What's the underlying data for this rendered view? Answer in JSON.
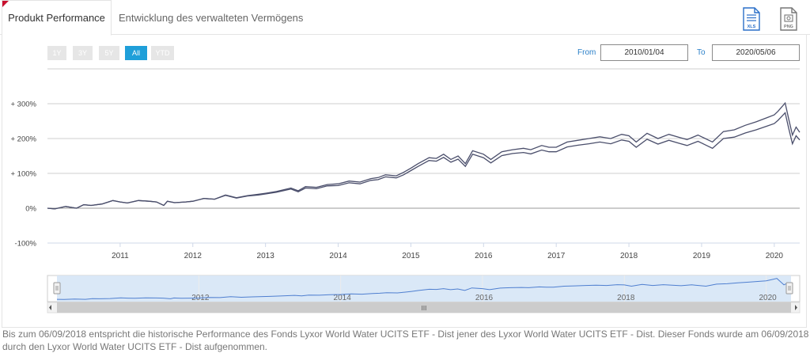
{
  "tabs": {
    "active": "Produkt Performance",
    "inactive": "Entwicklung des verwalteten Vermögens"
  },
  "exports": {
    "xls_label": "XLS",
    "png_label": "PNG"
  },
  "range_buttons": [
    "1Y",
    "3Y",
    "5Y",
    "All",
    "YTD"
  ],
  "range_selected": "All",
  "date_range": {
    "from_label": "From",
    "from_value": "2010/01/04",
    "to_label": "To",
    "to_value": "2020/05/06"
  },
  "colors": {
    "accent": "#1f9fd9",
    "tab_marker": "#c8102e",
    "series": "#4a4e6b",
    "navigator_fill": "#d6e6f6",
    "navigator_line": "#4f7fd0"
  },
  "chart_data": {
    "type": "line",
    "y_ticks": [
      "+ 300%",
      "+ 200%",
      "+ 100%",
      "0%",
      "-100%"
    ],
    "y_tick_values": [
      300,
      200,
      100,
      0,
      -100
    ],
    "ylim": [
      -100,
      300
    ],
    "x_ticks": [
      "2011",
      "2012",
      "2013",
      "2014",
      "2015",
      "2016",
      "2017",
      "2018",
      "2019",
      "2020"
    ],
    "x_tick_values": [
      2011,
      2012,
      2013,
      2014,
      2015,
      2016,
      2017,
      2018,
      2019,
      2020
    ],
    "xlim": [
      2010.0,
      2020.35
    ],
    "grid": true,
    "series": [
      {
        "x": [
          2010.0,
          2010.1,
          2010.25,
          2010.4,
          2010.5,
          2010.6,
          2010.75,
          2010.9,
          2011.0,
          2011.1,
          2011.25,
          2011.4,
          2011.5,
          2011.6,
          2011.65,
          2011.75,
          2011.9,
          2012.0,
          2012.15,
          2012.3,
          2012.45,
          2012.6,
          2012.75,
          2012.9,
          2013.0,
          2013.15,
          2013.35,
          2013.45,
          2013.55,
          2013.7,
          2013.85,
          2014.0,
          2014.15,
          2014.3,
          2014.45,
          2014.55,
          2014.65,
          2014.8,
          2014.9,
          2015.0,
          2015.1,
          2015.25,
          2015.35,
          2015.45,
          2015.55,
          2015.65,
          2015.75,
          2015.85,
          2016.0,
          2016.1,
          2016.25,
          2016.4,
          2016.55,
          2016.65,
          2016.8,
          2016.9,
          2017.0,
          2017.15,
          2017.3,
          2017.45,
          2017.6,
          2017.75,
          2017.9,
          2018.0,
          2018.1,
          2018.25,
          2018.4,
          2018.55,
          2018.7,
          2018.8,
          2018.95,
          2019.0,
          2019.15,
          2019.3,
          2019.45,
          2019.6,
          2019.75,
          2019.9,
          2020.0,
          2020.05,
          2020.1,
          2020.15,
          2020.2,
          2020.25,
          2020.3,
          2020.35
        ],
        "values": [
          0,
          -2,
          5,
          0,
          10,
          8,
          12,
          22,
          18,
          15,
          22,
          20,
          18,
          8,
          20,
          16,
          18,
          20,
          28,
          26,
          38,
          30,
          36,
          40,
          43,
          48,
          58,
          50,
          62,
          60,
          68,
          70,
          78,
          75,
          85,
          88,
          96,
          93,
          103,
          115,
          128,
          145,
          143,
          155,
          140,
          150,
          128,
          165,
          155,
          140,
          162,
          168,
          172,
          168,
          180,
          175,
          175,
          190,
          195,
          200,
          205,
          200,
          212,
          208,
          190,
          215,
          200,
          212,
          203,
          197,
          210,
          205,
          190,
          220,
          225,
          238,
          248,
          260,
          268,
          278,
          290,
          302,
          255,
          210,
          233,
          218
        ]
      },
      {
        "x": [
          2010.0,
          2010.1,
          2010.25,
          2010.4,
          2010.5,
          2010.6,
          2010.75,
          2010.9,
          2011.0,
          2011.1,
          2011.25,
          2011.4,
          2011.5,
          2011.6,
          2011.65,
          2011.75,
          2011.9,
          2012.0,
          2012.15,
          2012.3,
          2012.45,
          2012.6,
          2012.75,
          2012.9,
          2013.0,
          2013.15,
          2013.35,
          2013.45,
          2013.55,
          2013.7,
          2013.85,
          2014.0,
          2014.15,
          2014.3,
          2014.45,
          2014.55,
          2014.65,
          2014.8,
          2014.9,
          2015.0,
          2015.1,
          2015.25,
          2015.35,
          2015.45,
          2015.55,
          2015.65,
          2015.75,
          2015.85,
          2016.0,
          2016.1,
          2016.25,
          2016.4,
          2016.55,
          2016.65,
          2016.8,
          2016.9,
          2017.0,
          2017.15,
          2017.3,
          2017.45,
          2017.6,
          2017.75,
          2017.9,
          2018.0,
          2018.1,
          2018.25,
          2018.4,
          2018.55,
          2018.7,
          2018.8,
          2018.95,
          2019.0,
          2019.15,
          2019.3,
          2019.45,
          2019.6,
          2019.75,
          2019.9,
          2020.0,
          2020.05,
          2020.1,
          2020.15,
          2020.2,
          2020.25,
          2020.3,
          2020.35
        ],
        "values": [
          0,
          -2,
          5,
          0,
          10,
          8,
          12,
          22,
          18,
          15,
          22,
          20,
          18,
          8,
          20,
          16,
          18,
          20,
          28,
          26,
          37,
          29,
          35,
          38,
          41,
          46,
          55,
          47,
          58,
          56,
          64,
          65,
          73,
          70,
          80,
          82,
          90,
          87,
          96,
          108,
          120,
          137,
          135,
          146,
          132,
          141,
          120,
          155,
          145,
          130,
          151,
          157,
          160,
          156,
          167,
          162,
          162,
          176,
          181,
          185,
          190,
          185,
          196,
          192,
          175,
          198,
          184,
          195,
          186,
          180,
          192,
          187,
          172,
          200,
          204,
          216,
          225,
          236,
          243,
          252,
          263,
          274,
          228,
          185,
          208,
          196
        ]
      }
    ],
    "navigator": {
      "x_ticks": [
        "2012",
        "2014",
        "2016",
        "2018",
        "2020"
      ],
      "x_tick_values": [
        2012,
        2014,
        2016,
        2018,
        2020
      ],
      "scroll_grip": "III"
    }
  },
  "footnote": "Bis zum 06/09/2018 entspricht die historische Performance des Fonds Lyxor World Water UCITS ETF - Dist jener des Lyxor World Water UCITS ETF - Dist. Dieser Fonds wurde am 06/09/2018 durch den Lyxor World Water UCITS ETF - Dist aufgenommen."
}
